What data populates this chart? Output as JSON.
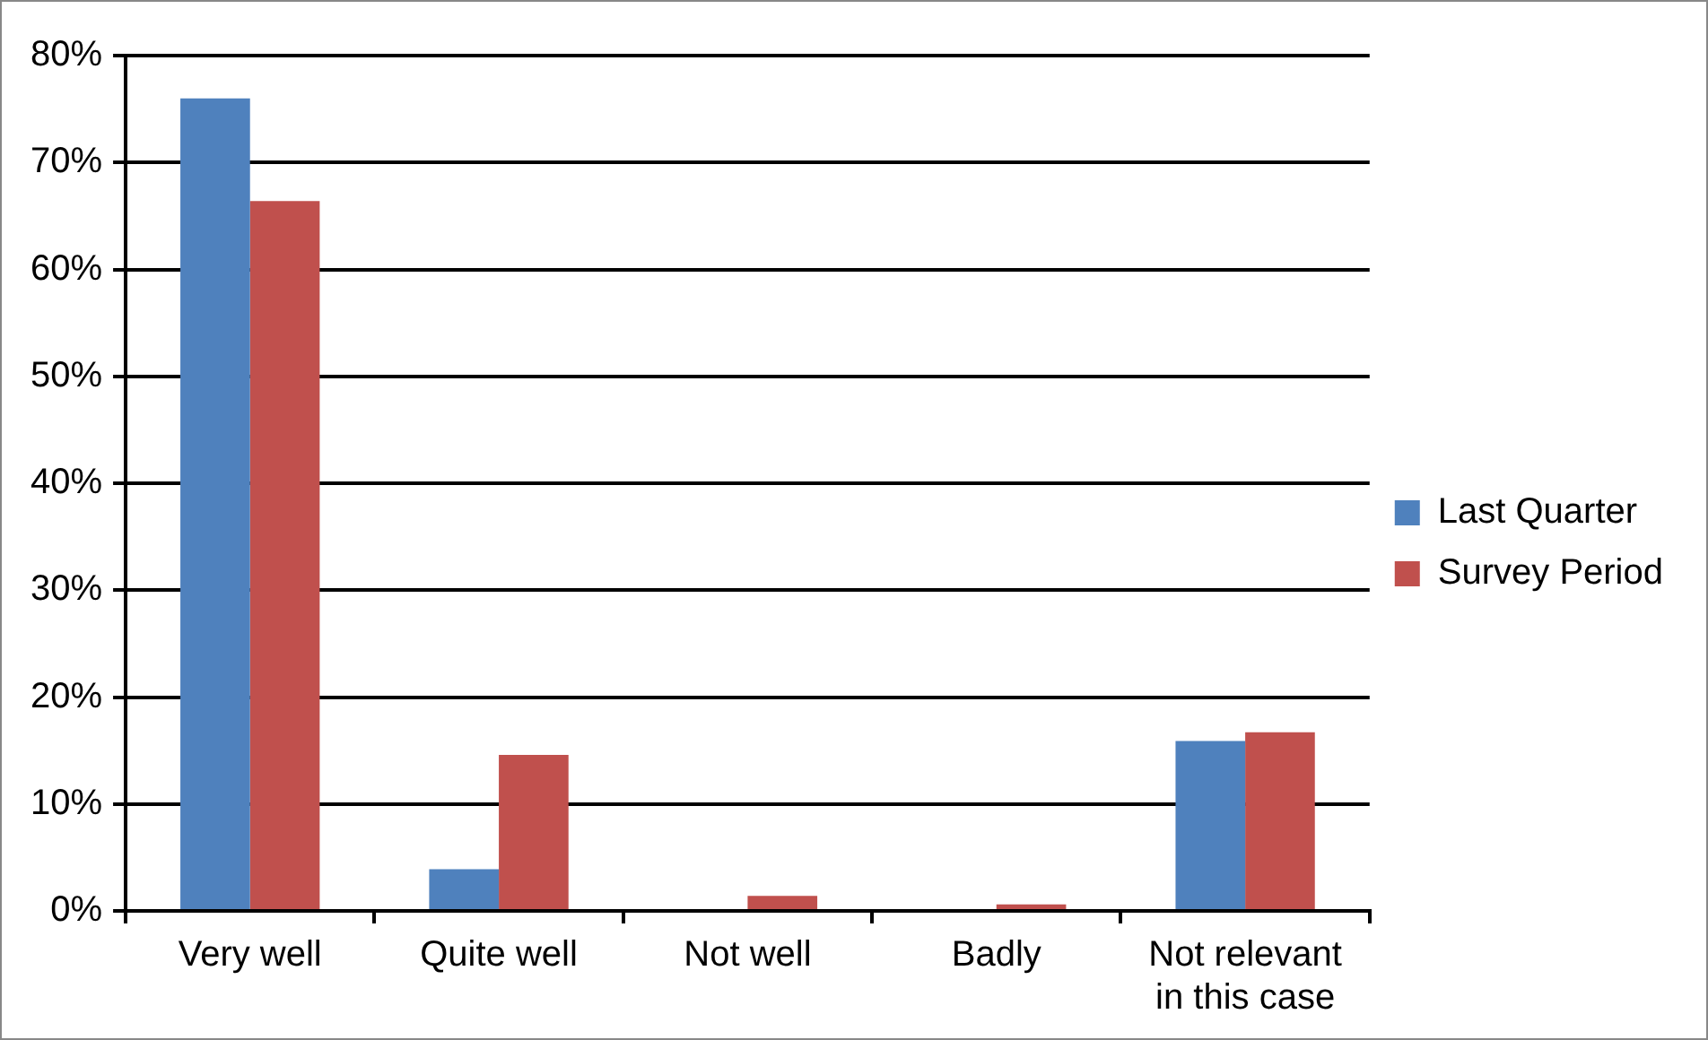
{
  "chart_data": {
    "type": "bar",
    "categories": [
      "Very well",
      "Quite well",
      "Not well",
      "Badly",
      "Not relevant in this case"
    ],
    "series": [
      {
        "name": "Last Quarter",
        "color": "#4f81bd",
        "values": [
          76.0,
          3.9,
          0,
          0,
          15.9
        ]
      },
      {
        "name": "Survey Period",
        "color": "#c0504d",
        "values": [
          66.4,
          14.6,
          1.4,
          0.6,
          16.7
        ]
      }
    ],
    "ylim": [
      0,
      80
    ],
    "yticks": [
      {
        "value": 0,
        "label": "0%"
      },
      {
        "value": 10,
        "label": "10%"
      },
      {
        "value": 20,
        "label": "20%"
      },
      {
        "value": 30,
        "label": "30%"
      },
      {
        "value": 40,
        "label": "40%"
      },
      {
        "value": 50,
        "label": "50%"
      },
      {
        "value": 60,
        "label": "60%"
      },
      {
        "value": 70,
        "label": "70%"
      },
      {
        "value": 80,
        "label": "80%"
      }
    ],
    "grid": "y",
    "legend": "right"
  }
}
